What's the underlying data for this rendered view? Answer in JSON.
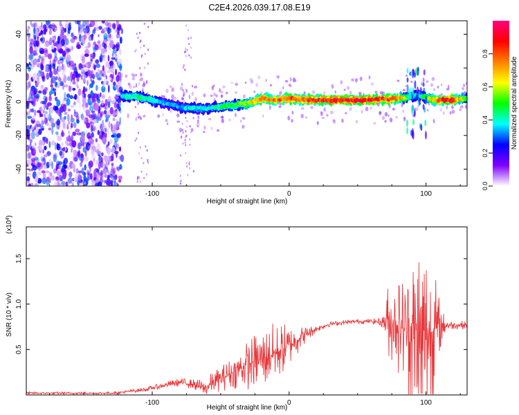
{
  "title": "C2E4.2026.039.17.08.E19",
  "chart_data": [
    {
      "type": "heatmap",
      "name": "spectrogram",
      "xlabel": "Height of straight line (km)",
      "ylabel": "Frequency (Hz)",
      "xlim": [
        -192,
        130
      ],
      "ylim": [
        -50,
        48
      ],
      "xticks": [
        -100,
        0,
        100
      ],
      "yticks": [
        -40,
        -20,
        0,
        20,
        40
      ],
      "noise_region_x": [
        -192,
        -122
      ],
      "sparse_streaks_x": [
        -108,
        -75
      ],
      "ridge": {
        "x": [
          -122,
          -110,
          -100,
          -90,
          -80,
          -70,
          -60,
          -50,
          -40,
          -30,
          -20,
          -10,
          0,
          10,
          30,
          60,
          80,
          88,
          95,
          105,
          118,
          130
        ],
        "freq": [
          3,
          3,
          1,
          -1,
          -3,
          -4,
          -4,
          -3,
          -2,
          -1,
          2,
          1,
          2,
          1,
          1,
          1,
          2,
          3,
          4,
          1,
          1,
          2
        ],
        "amplitude": [
          0.42,
          0.45,
          0.4,
          0.35,
          0.33,
          0.4,
          0.38,
          0.45,
          0.5,
          0.6,
          0.85,
          0.75,
          0.8,
          0.82,
          0.9,
          0.9,
          0.75,
          0.45,
          0.35,
          0.7,
          0.95,
          0.45
        ]
      },
      "colorbar": {
        "label": "Normalized spectral amplitude",
        "range": [
          0,
          1
        ],
        "ticks": [
          "0.0",
          "0.2",
          "0.4",
          "0.6",
          "0.8"
        ],
        "colors": [
          "#ffffff",
          "#8000ff",
          "#0000ff",
          "#00ffff",
          "#00ff00",
          "#ffff00",
          "#ff8000",
          "#ff0000",
          "#ff0080"
        ]
      }
    },
    {
      "type": "line",
      "name": "snr",
      "xlabel": "Height of straight line (km)",
      "ylabel": "SNR (10 * v/v)",
      "multiplier": "(x10",
      "multiplier_exp": "4",
      "multiplier_close": ")",
      "color": "#e8373a",
      "xlim": [
        -192,
        130
      ],
      "ylim": [
        0,
        1.85
      ],
      "xticks": [
        -100,
        0,
        100
      ],
      "yticks": [
        0.5,
        1.0,
        1.5
      ],
      "ytick_labels": [
        "0.5",
        "1.0",
        "1.5"
      ],
      "envelope": {
        "x": [
          -192,
          -130,
          -122,
          -105,
          -90,
          -80,
          -70,
          -62,
          -55,
          -45,
          -35,
          -28,
          -20,
          -10,
          0,
          10,
          20,
          30,
          40,
          50,
          60,
          68,
          72,
          78,
          84,
          88,
          92,
          96,
          98,
          102,
          106,
          110,
          115,
          120,
          130
        ],
        "y": [
          0.02,
          0.02,
          0.03,
          0.06,
          0.11,
          0.14,
          0.12,
          0.07,
          0.14,
          0.22,
          0.3,
          0.35,
          0.4,
          0.46,
          0.55,
          0.65,
          0.73,
          0.78,
          0.8,
          0.81,
          0.81,
          0.8,
          0.82,
          0.8,
          0.74,
          0.7,
          0.62,
          0.58,
          0.6,
          0.66,
          0.72,
          0.76,
          0.77,
          0.77,
          0.77
        ]
      },
      "noise_amplitude": {
        "x": [
          -192,
          -125,
          -100,
          -70,
          -60,
          -50,
          -40,
          -30,
          -20,
          -10,
          0,
          10,
          20,
          30,
          60,
          68,
          72,
          78,
          84,
          88,
          92,
          96,
          99,
          104,
          108,
          112,
          118,
          130
        ],
        "y": [
          0.01,
          0.01,
          0.02,
          0.04,
          0.08,
          0.1,
          0.14,
          0.2,
          0.26,
          0.25,
          0.18,
          0.08,
          0.03,
          0.02,
          0.02,
          0.04,
          0.3,
          0.38,
          0.45,
          0.55,
          0.9,
          1.2,
          1.05,
          0.65,
          0.35,
          0.12,
          0.04,
          0.03
        ]
      }
    }
  ]
}
